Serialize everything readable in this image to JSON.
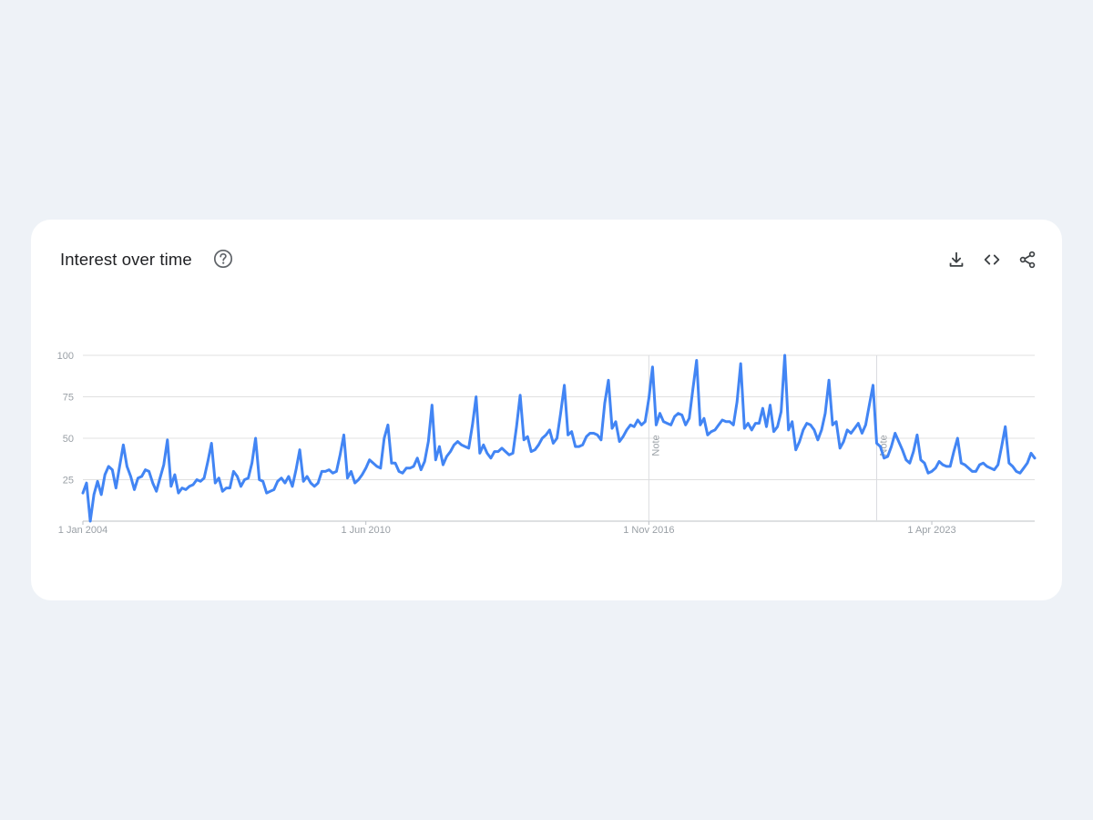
{
  "card": {
    "title": "Interest over time",
    "help_icon": "help-circle-icon",
    "tools": [
      {
        "name": "download-button",
        "icon": "download-icon"
      },
      {
        "name": "embed-button",
        "icon": "code-icon"
      },
      {
        "name": "share-button",
        "icon": "share-icon"
      }
    ]
  },
  "colors": {
    "background": "#eef2f7",
    "card": "#ffffff",
    "line": "#4285f4",
    "grid": "#e0e0e0",
    "axis_text": "#9aa0a6"
  },
  "chart_data": {
    "type": "line",
    "title": "Interest over time",
    "xlabel": "",
    "ylabel": "",
    "ylim": [
      0,
      100
    ],
    "yticks": [
      100,
      75,
      50,
      25
    ],
    "xtick_labels": [
      "1 Jan 2004",
      "1 Jun 2010",
      "1 Nov 2016",
      "1 Apr 2023"
    ],
    "xtick_dates": [
      "2004-01",
      "2010-06",
      "2016-11",
      "2023-04"
    ],
    "annotations": [
      {
        "date": "2016-11",
        "text": "Note"
      },
      {
        "date": "2022-01",
        "text": "Note"
      }
    ],
    "grid": true,
    "series": [
      {
        "values": [
          17,
          23,
          0,
          16,
          24,
          16,
          28,
          33,
          31,
          20,
          33,
          46,
          33,
          27,
          19,
          26,
          27,
          31,
          30,
          23,
          18,
          26,
          34,
          49,
          21,
          28,
          17,
          20,
          19,
          21,
          22,
          25,
          24,
          26,
          36,
          47,
          23,
          26,
          18,
          20,
          20,
          30,
          27,
          21,
          25,
          26,
          35,
          50,
          25,
          24,
          17,
          18,
          19,
          24,
          26,
          23,
          27,
          21,
          31,
          43,
          24,
          27,
          23,
          21,
          23,
          30,
          30,
          31,
          29,
          30,
          40,
          52,
          26,
          30,
          23,
          25,
          28,
          32,
          37,
          35,
          33,
          32,
          50,
          58,
          35,
          35,
          30,
          29,
          32,
          32,
          33,
          38,
          31,
          36,
          48,
          70,
          37,
          45,
          34,
          39,
          42,
          46,
          48,
          46,
          45,
          44,
          58,
          75,
          41,
          46,
          41,
          38,
          42,
          42,
          44,
          42,
          40,
          41,
          57,
          76,
          49,
          51,
          42,
          43,
          46,
          50,
          52,
          55,
          47,
          50,
          65,
          82,
          52,
          54,
          45,
          45,
          46,
          51,
          53,
          53,
          52,
          49,
          71,
          85,
          56,
          60,
          48,
          51,
          55,
          58,
          57,
          61,
          58,
          60,
          74,
          93,
          58,
          65,
          60,
          59,
          58,
          63,
          65,
          64,
          58,
          62,
          80,
          97,
          58,
          62,
          52,
          54,
          55,
          58,
          61,
          60,
          60,
          58,
          72,
          95,
          56,
          59,
          55,
          59,
          59,
          68,
          57,
          70,
          54,
          57,
          66,
          100,
          55,
          60,
          43,
          48,
          55,
          59,
          58,
          55,
          49,
          55,
          65,
          85,
          58,
          60,
          44,
          48,
          55,
          53,
          56,
          59,
          53,
          58,
          70,
          82,
          47,
          45,
          38,
          39,
          45,
          53,
          48,
          43,
          37,
          35,
          42,
          52,
          37,
          35,
          29,
          30,
          32,
          36,
          34,
          33,
          33,
          42,
          50,
          35,
          34,
          32,
          30,
          30,
          34,
          35,
          33,
          32,
          31,
          34,
          45,
          57,
          35,
          33,
          30,
          29,
          32,
          35,
          41,
          38
        ]
      }
    ]
  }
}
